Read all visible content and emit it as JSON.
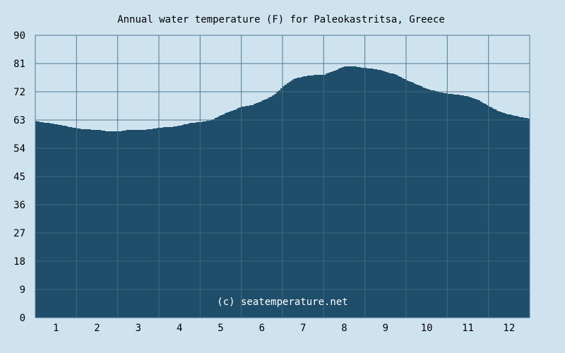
{
  "chart_data": {
    "type": "area",
    "title": "Annual water temperature (F) for Paleokastritsa, Greece",
    "xlabel": "",
    "ylabel": "",
    "x_ticks": [
      "1",
      "2",
      "3",
      "4",
      "5",
      "6",
      "7",
      "8",
      "9",
      "10",
      "11",
      "12"
    ],
    "y_ticks": [
      "0",
      "9",
      "18",
      "27",
      "36",
      "45",
      "54",
      "63",
      "72",
      "81",
      "90"
    ],
    "xlim": [
      0.5,
      12.5
    ],
    "ylim": [
      0,
      90
    ],
    "grid": true,
    "series": [
      {
        "x": [
          0.5,
          0.75,
          1.0,
          1.25,
          1.5,
          1.75,
          2.0,
          2.25,
          2.5,
          2.75,
          3.0,
          3.25,
          3.5,
          3.75,
          4.0,
          4.25,
          4.5,
          4.75,
          5.0,
          5.25,
          5.5,
          5.75,
          6.0,
          6.25,
          6.5,
          6.75,
          7.0,
          7.25,
          7.5,
          7.75,
          8.0,
          8.25,
          8.5,
          8.75,
          9.0,
          9.25,
          9.5,
          9.75,
          10.0,
          10.25,
          10.5,
          10.75,
          11.0,
          11.25,
          11.5,
          11.75,
          12.0,
          12.25,
          12.5
        ],
        "values": [
          62.6,
          62.1,
          61.6,
          61.0,
          60.3,
          60.0,
          59.9,
          59.4,
          59.4,
          59.9,
          59.9,
          60.0,
          60.6,
          60.7,
          61.2,
          62.1,
          62.3,
          63.0,
          64.6,
          66.0,
          67.2,
          67.8,
          69.2,
          70.8,
          73.7,
          76.0,
          77.0,
          77.3,
          77.5,
          78.8,
          80.2,
          80.0,
          79.6,
          79.2,
          78.4,
          77.3,
          75.6,
          74.3,
          72.9,
          72.0,
          71.3,
          71.1,
          70.5,
          69.3,
          67.3,
          65.7,
          64.7,
          64.0,
          63.3
        ]
      }
    ],
    "colors": {
      "background": "#cfe3ef",
      "fill": "#1e4e6a",
      "grid": "#4f7a92",
      "grid_over_fill": "#3f6a84",
      "text": "#000000",
      "watermark": "#ffffff"
    },
    "annotations": [
      "(c) seatemperature.net"
    ]
  }
}
